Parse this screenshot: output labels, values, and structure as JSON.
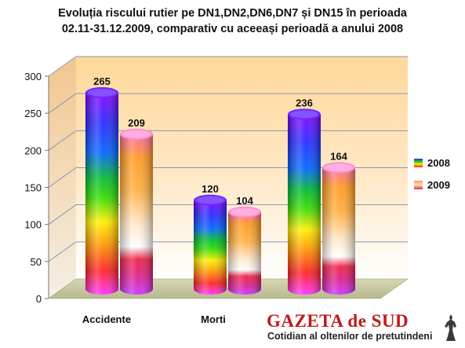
{
  "chart_data": {
    "type": "bar",
    "title_lines": [
      "Evoluția  riscului rutier  pe DN1,DN2,DN6,DN7 și DN15 în perioada",
      "02.11-31.12.2009, comparativ cu aceeași perioadă a anului  2008"
    ],
    "categories": [
      "Accidente",
      "Morti",
      ""
    ],
    "series": [
      {
        "name": "2008",
        "values": [
          265,
          120,
          236
        ]
      },
      {
        "name": "2009",
        "values": [
          209,
          104,
          164
        ]
      }
    ],
    "ylim": [
      0,
      300
    ],
    "yticks": [
      "0",
      "50",
      "100",
      "150",
      "200",
      "250",
      "300"
    ],
    "grid": true,
    "legend_position": "right"
  },
  "watermark": {
    "title": "GAZETA de SUD",
    "subtitle": "Cotidian al oltenilor de pretutindeni"
  },
  "colors": {
    "wall_top": "#ffdca0",
    "wall_bottom": "#ffffff",
    "floor": "#c3c39c",
    "gridline": "#8a9ab0",
    "brand_red": "#c0191e"
  }
}
